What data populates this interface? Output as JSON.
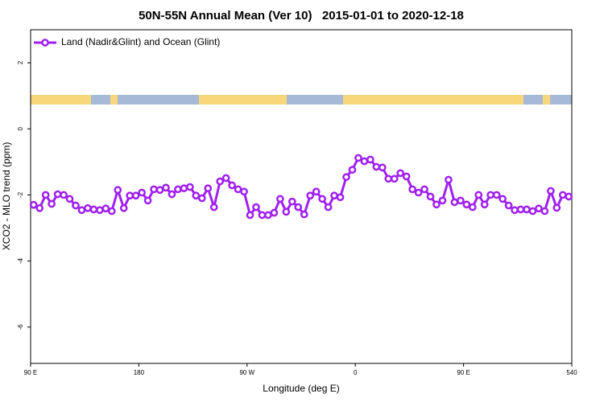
{
  "chart_data": {
    "type": "line",
    "title": "50N-55N Annual Mean (Ver 10)   2015-01-01 to 2020-12-18",
    "xlabel": "Longitude (deg E)",
    "ylabel": "XCO2 - MLO trend (ppm)",
    "x": [
      92.5,
      97.5,
      102.5,
      107.5,
      112.5,
      117.5,
      122.5,
      127.5,
      132.5,
      137.5,
      142.5,
      147.5,
      152.5,
      157.5,
      162.5,
      167.5,
      172.5,
      177.5,
      182.5,
      187.5,
      192.5,
      197.5,
      202.5,
      207.5,
      212.5,
      217.5,
      222.5,
      227.5,
      232.5,
      237.5,
      242.5,
      247.5,
      252.5,
      257.5,
      262.5,
      267.5,
      272.5,
      277.5,
      282.5,
      287.5,
      292.5,
      297.5,
      302.5,
      307.5,
      312.5,
      317.5,
      322.5,
      327.5,
      332.5,
      337.5,
      342.5,
      347.5,
      352.5,
      357.5,
      362.5,
      367.5,
      372.5,
      377.5,
      382.5,
      387.5,
      392.5,
      397.5,
      402.5,
      407.5,
      412.5,
      417.5,
      422.5,
      427.5,
      432.5,
      437.5,
      442.5,
      447.5,
      452.5,
      457.5,
      462.5,
      467.5,
      472.5,
      477.5,
      482.5,
      487.5,
      492.5,
      497.5,
      502.5,
      507.5,
      512.5,
      517.5,
      522.5,
      527.5,
      532.5,
      537.5
    ],
    "series": [
      {
        "name": "Land (Nadir&Glint) and Ocean (Glint)",
        "color": "#a020f0",
        "values": [
          -2.3,
          -2.4,
          -2.0,
          -2.27,
          -1.98,
          -2.0,
          -2.12,
          -2.32,
          -2.46,
          -2.4,
          -2.44,
          -2.46,
          -2.41,
          -2.49,
          -1.85,
          -2.4,
          -2.02,
          -2.02,
          -1.93,
          -2.17,
          -1.83,
          -1.85,
          -1.78,
          -1.98,
          -1.83,
          -1.8,
          -1.76,
          -2.02,
          -2.1,
          -1.8,
          -2.37,
          -1.59,
          -1.49,
          -1.71,
          -1.83,
          -1.9,
          -2.61,
          -2.37,
          -2.61,
          -2.61,
          -2.54,
          -2.12,
          -2.51,
          -2.2,
          -2.37,
          -2.59,
          -2.02,
          -1.9,
          -2.12,
          -2.37,
          -2.02,
          -2.07,
          -1.46,
          -1.24,
          -0.88,
          -0.98,
          -0.93,
          -1.15,
          -1.17,
          -1.51,
          -1.51,
          -1.34,
          -1.44,
          -1.83,
          -1.93,
          -1.83,
          -2.05,
          -2.29,
          -2.17,
          -1.54,
          -2.22,
          -2.17,
          -2.29,
          -2.37,
          -2.0,
          -2.29,
          -2.0,
          -2.0,
          -2.12,
          -2.32,
          -2.46,
          -2.44,
          -2.44,
          -2.49,
          -2.41,
          -2.49,
          -1.88,
          -2.39,
          -2.0,
          -2.05
        ]
      }
    ],
    "xlim": [
      90,
      540
    ],
    "ylim": [
      -7.1,
      3.0
    ],
    "xticks": [
      {
        "value": 90,
        "label": "90 E"
      },
      180,
      {
        "value": 270,
        "label": "90 W"
      },
      {
        "value": 360,
        "label": "0"
      },
      {
        "value": 450,
        "label": "90 E"
      },
      540
    ],
    "yticks": [
      2,
      0,
      -2,
      -4,
      -6
    ],
    "legend": "top-left"
  }
}
